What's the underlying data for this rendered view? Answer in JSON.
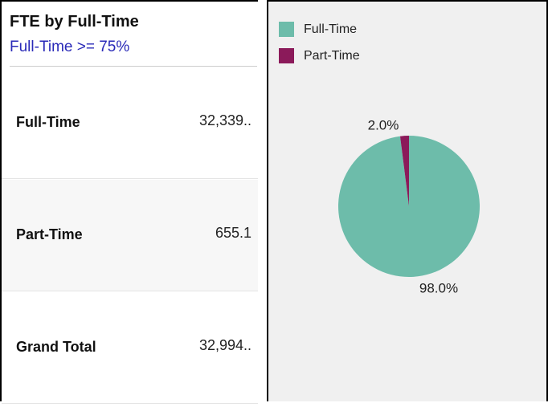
{
  "header": {
    "title": "FTE by Full-Time",
    "subtitle": "Full-Time >= 75%"
  },
  "table": {
    "rows": [
      [
        "Full-Time",
        "32,339.."
      ],
      [
        "Part-Time",
        "655.1"
      ],
      [
        "Grand Total",
        "32,994.."
      ]
    ]
  },
  "chart_data": {
    "type": "pie",
    "categories": [
      "Full-Time",
      "Part-Time"
    ],
    "values": [
      98,
      2
    ],
    "value_labels": [
      "98.0%",
      "2.0%"
    ],
    "colors": [
      "#6dbcaa",
      "#8b1a5a"
    ],
    "legend": "top-left"
  }
}
